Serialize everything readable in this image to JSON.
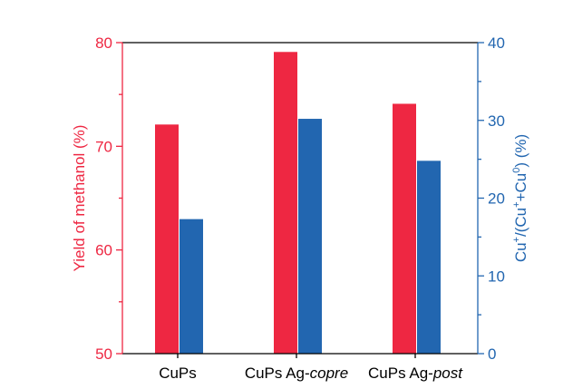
{
  "chart_data": {
    "type": "bar",
    "title": "",
    "categories": [
      {
        "prefix": "CuPs",
        "suffix": ""
      },
      {
        "prefix": "CuPs Ag-",
        "suffix": "copre"
      },
      {
        "prefix": "CuPs Ag-",
        "suffix": "post"
      }
    ],
    "series": [
      {
        "name": "Yield of methanol (%)",
        "axis": "left",
        "color": "#EE2742",
        "values": [
          72.1,
          79.1,
          74.1
        ]
      },
      {
        "name": "Cu+/(Cu++Cu0) (%)",
        "axis": "right",
        "color": "#2266B0",
        "values": [
          17.3,
          30.2,
          24.8
        ]
      }
    ],
    "left_axis": {
      "label": "Yield of methanol (%)",
      "ylim": [
        50,
        80
      ],
      "ticks": [
        50,
        60,
        70,
        80
      ],
      "color": "#EE2742"
    },
    "right_axis": {
      "label_parts": [
        "Cu",
        "+",
        "/(Cu",
        "+",
        "+Cu",
        "0",
        ") (%)"
      ],
      "ylim": [
        0,
        40
      ],
      "ticks": [
        0,
        10,
        20,
        30,
        40
      ],
      "color": "#2266B0"
    },
    "xlabel": "",
    "grid": false,
    "legend": "none"
  }
}
